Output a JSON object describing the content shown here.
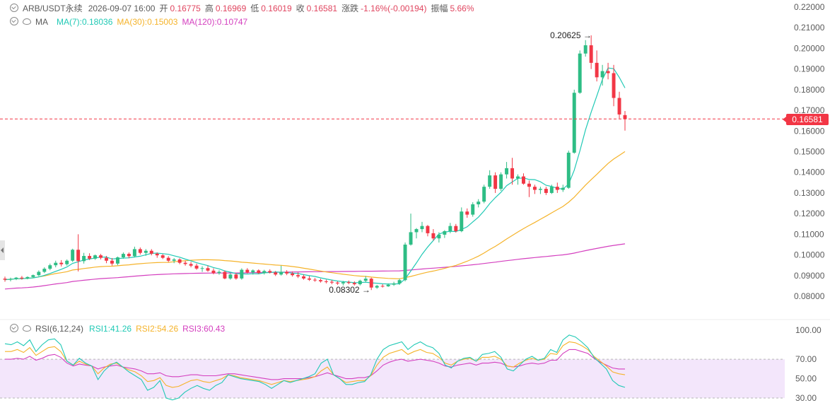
{
  "header": {
    "symbol": "ARB/USDT永续",
    "time": "2026-09-07 16:00",
    "open_label": "开",
    "open": "0.16775",
    "high_label": "高",
    "high": "0.16969",
    "low_label": "低",
    "low": "0.16019",
    "close_label": "收",
    "close": "0.16581",
    "change_label": "涨跌",
    "change": "-1.16%(-0.00194)",
    "amplitude_label": "振幅",
    "amplitude": "5.66%"
  },
  "ma_legend": {
    "label": "MA",
    "ma7": "MA(7):0.18036",
    "ma30": "MA(30):0.15003",
    "ma120": "MA(120):0.10747"
  },
  "rsi_legend": {
    "label": "RSI(6,12,24)",
    "rsi1": "RSI1:41.26",
    "rsi2": "RSI2:54.26",
    "rsi3": "RSI3:60.43"
  },
  "current_price": "0.16581",
  "annotations": {
    "high_marker": "0.20625",
    "low_marker": "0.08302"
  },
  "colors": {
    "up": "#2ebd85",
    "down": "#f23645",
    "ma7": "#20c9b5",
    "ma30": "#f5b32a",
    "ma120": "#d43fbf",
    "rsi1": "#20c9b5",
    "rsi2": "#f5b32a",
    "rsi3": "#d43fbf",
    "rsi_band": "#f3e6fb",
    "text": "#5a5a5a"
  },
  "chart_data": [
    {
      "type": "candlestick",
      "y_ticks": [
        "0.22000",
        "0.21000",
        "0.20000",
        "0.19000",
        "0.18000",
        "0.17000",
        "0.16000",
        "0.15000",
        "0.14000",
        "0.13000",
        "0.12000",
        "0.11000",
        "0.10000",
        "0.09000",
        "0.08000"
      ],
      "ylim": [
        0.075,
        0.222
      ],
      "candles": [
        [
          0.0885,
          0.0895,
          0.087,
          0.088
        ],
        [
          0.088,
          0.089,
          0.0872,
          0.0884
        ],
        [
          0.0884,
          0.0893,
          0.0878,
          0.089
        ],
        [
          0.089,
          0.0898,
          0.088,
          0.0886
        ],
        [
          0.0886,
          0.0896,
          0.0882,
          0.0893
        ],
        [
          0.0893,
          0.0905,
          0.0888,
          0.0902
        ],
        [
          0.0902,
          0.0925,
          0.0897,
          0.0918
        ],
        [
          0.0918,
          0.094,
          0.0912,
          0.0933
        ],
        [
          0.0933,
          0.0958,
          0.0926,
          0.095
        ],
        [
          0.095,
          0.0972,
          0.094,
          0.0962
        ],
        [
          0.0962,
          0.0975,
          0.0944,
          0.0955
        ],
        [
          0.0955,
          0.0978,
          0.0948,
          0.0972
        ],
        [
          0.0972,
          0.103,
          0.0966,
          0.1025
        ],
        [
          0.1025,
          0.11,
          0.092,
          0.097
        ],
        [
          0.097,
          0.101,
          0.0958,
          0.0995
        ],
        [
          0.0995,
          0.1008,
          0.0975,
          0.0982
        ],
        [
          0.0982,
          0.1002,
          0.0976,
          0.0998
        ],
        [
          0.0998,
          0.1005,
          0.0978,
          0.0986
        ],
        [
          0.0986,
          0.0995,
          0.096,
          0.0972
        ],
        [
          0.0972,
          0.0985,
          0.0948,
          0.0958
        ],
        [
          0.0958,
          0.0992,
          0.095,
          0.0988
        ],
        [
          0.0988,
          0.1012,
          0.0982,
          0.1005
        ],
        [
          0.1005,
          0.1012,
          0.0984,
          0.0994
        ],
        [
          0.0994,
          0.104,
          0.0988,
          0.1028
        ],
        [
          0.1028,
          0.1036,
          0.1002,
          0.101
        ],
        [
          0.101,
          0.1028,
          0.0996,
          0.102
        ],
        [
          0.102,
          0.1028,
          0.0998,
          0.1006
        ],
        [
          0.1006,
          0.1012,
          0.0986,
          0.0998
        ],
        [
          0.0998,
          0.1004,
          0.098,
          0.0986
        ],
        [
          0.0986,
          0.0994,
          0.0966,
          0.0972
        ],
        [
          0.0972,
          0.0985,
          0.096,
          0.0978
        ],
        [
          0.0978,
          0.0984,
          0.0955,
          0.0962
        ],
        [
          0.0962,
          0.0972,
          0.0948,
          0.0956
        ],
        [
          0.0956,
          0.0966,
          0.094,
          0.0948
        ],
        [
          0.0948,
          0.0958,
          0.0928,
          0.0934
        ],
        [
          0.0934,
          0.0945,
          0.0918,
          0.0936
        ],
        [
          0.0936,
          0.0948,
          0.0918,
          0.0924
        ],
        [
          0.0924,
          0.0935,
          0.0906,
          0.0912
        ],
        [
          0.0912,
          0.0926,
          0.0904,
          0.0918
        ],
        [
          0.0918,
          0.0925,
          0.0882,
          0.0886
        ],
        [
          0.0886,
          0.0912,
          0.088,
          0.0905
        ],
        [
          0.0905,
          0.0912,
          0.088,
          0.0886
        ],
        [
          0.0886,
          0.0935,
          0.088,
          0.0928
        ],
        [
          0.0928,
          0.0936,
          0.091,
          0.0915
        ],
        [
          0.0915,
          0.093,
          0.0905,
          0.0925
        ],
        [
          0.0925,
          0.093,
          0.0908,
          0.0912
        ],
        [
          0.0912,
          0.0928,
          0.0905,
          0.0922
        ],
        [
          0.0922,
          0.093,
          0.091,
          0.0915
        ],
        [
          0.0915,
          0.0922,
          0.0898,
          0.0905
        ],
        [
          0.0905,
          0.0948,
          0.09,
          0.0918
        ],
        [
          0.0918,
          0.0926,
          0.0902,
          0.091
        ],
        [
          0.091,
          0.092,
          0.0895,
          0.0902
        ],
        [
          0.0902,
          0.0915,
          0.0888,
          0.0896
        ],
        [
          0.0896,
          0.0905,
          0.088,
          0.0886
        ],
        [
          0.0886,
          0.0898,
          0.0874,
          0.088
        ],
        [
          0.088,
          0.0888,
          0.087,
          0.0878
        ],
        [
          0.0878,
          0.0885,
          0.0866,
          0.0872
        ],
        [
          0.0872,
          0.088,
          0.0862,
          0.087
        ],
        [
          0.087,
          0.0878,
          0.0858,
          0.0866
        ],
        [
          0.0866,
          0.0872,
          0.0855,
          0.0862
        ],
        [
          0.0862,
          0.0874,
          0.0852,
          0.0868
        ],
        [
          0.0868,
          0.0876,
          0.0858,
          0.0864
        ],
        [
          0.0864,
          0.0872,
          0.0852,
          0.0858
        ],
        [
          0.0858,
          0.088,
          0.0852,
          0.0875
        ],
        [
          0.0875,
          0.0898,
          0.0868,
          0.0885
        ],
        [
          0.0885,
          0.089,
          0.083,
          0.0842
        ],
        [
          0.0842,
          0.0855,
          0.0836,
          0.085
        ],
        [
          0.085,
          0.0858,
          0.0842,
          0.0848
        ],
        [
          0.0848,
          0.0862,
          0.0845,
          0.0856
        ],
        [
          0.0856,
          0.087,
          0.085,
          0.0862
        ],
        [
          0.0862,
          0.0885,
          0.0855,
          0.0878
        ],
        [
          0.0878,
          0.106,
          0.0872,
          0.105
        ],
        [
          0.105,
          0.12,
          0.1045,
          0.111
        ],
        [
          0.111,
          0.113,
          0.108,
          0.1125
        ],
        [
          0.1125,
          0.116,
          0.111,
          0.114
        ],
        [
          0.114,
          0.1145,
          0.109,
          0.1105
        ],
        [
          0.1105,
          0.1125,
          0.107,
          0.108
        ],
        [
          0.108,
          0.111,
          0.106,
          0.1098
        ],
        [
          0.1098,
          0.112,
          0.1082,
          0.1115
        ],
        [
          0.1115,
          0.1155,
          0.1105,
          0.114
        ],
        [
          0.114,
          0.115,
          0.1108,
          0.1115
        ],
        [
          0.1115,
          0.123,
          0.111,
          0.121
        ],
        [
          0.121,
          0.1225,
          0.118,
          0.1195
        ],
        [
          0.1195,
          0.1255,
          0.1185,
          0.1245
        ],
        [
          0.1245,
          0.127,
          0.123,
          0.1258
        ],
        [
          0.1258,
          0.134,
          0.125,
          0.133
        ],
        [
          0.133,
          0.141,
          0.132,
          0.1385
        ],
        [
          0.1385,
          0.14,
          0.13,
          0.132
        ],
        [
          0.132,
          0.14,
          0.131,
          0.139
        ],
        [
          0.139,
          0.145,
          0.137,
          0.142
        ],
        [
          0.142,
          0.147,
          0.134,
          0.137
        ],
        [
          0.137,
          0.139,
          0.134,
          0.138
        ],
        [
          0.138,
          0.1395,
          0.134,
          0.1345
        ],
        [
          0.1345,
          0.136,
          0.128,
          0.133
        ],
        [
          0.133,
          0.134,
          0.1295,
          0.1315
        ],
        [
          0.1315,
          0.133,
          0.1295,
          0.132
        ],
        [
          0.132,
          0.133,
          0.129,
          0.13
        ],
        [
          0.13,
          0.134,
          0.1295,
          0.133
        ],
        [
          0.133,
          0.135,
          0.13,
          0.1315
        ],
        [
          0.1315,
          0.134,
          0.1305,
          0.1325
        ],
        [
          0.1325,
          0.1505,
          0.132,
          0.1495
        ],
        [
          0.1495,
          0.18,
          0.149,
          0.1785
        ],
        [
          0.1785,
          0.199,
          0.178,
          0.1975
        ],
        [
          0.1975,
          0.204,
          0.196,
          0.2015
        ],
        [
          0.2015,
          0.2063,
          0.19,
          0.193
        ],
        [
          0.193,
          0.199,
          0.184,
          0.186
        ],
        [
          0.186,
          0.192,
          0.182,
          0.189
        ],
        [
          0.189,
          0.193,
          0.185,
          0.188
        ],
        [
          0.188,
          0.192,
          0.172,
          0.176
        ],
        [
          0.176,
          0.179,
          0.166,
          0.168
        ],
        [
          0.1677,
          0.1697,
          0.1602,
          0.1658
        ]
      ]
    },
    {
      "type": "line",
      "name": "RSI",
      "y_ticks": [
        "100.00",
        "70.00",
        "50.00",
        "30.00"
      ],
      "band": [
        30,
        70
      ],
      "series": [
        {
          "name": "RSI1",
          "values": [
            86,
            85,
            88,
            84,
            90,
            78,
            85,
            90,
            91,
            85,
            68,
            64,
            71,
            66,
            63,
            49,
            58,
            64,
            67,
            62,
            57,
            53,
            49,
            38,
            41,
            48,
            30,
            28,
            30,
            36,
            40,
            43,
            40,
            38,
            43,
            46,
            54,
            52,
            50,
            49,
            48,
            47,
            44,
            40,
            44,
            48,
            46,
            48,
            50,
            52,
            55,
            66,
            70,
            54,
            50,
            44,
            44,
            46,
            47,
            54,
            70,
            80,
            84,
            86,
            88,
            80,
            85,
            88,
            84,
            82,
            76,
            64,
            61,
            68,
            71,
            72,
            68,
            75,
            76,
            78,
            72,
            60,
            58,
            64,
            70,
            73,
            69,
            71,
            80,
            77,
            90,
            95,
            93,
            88,
            82,
            72,
            66,
            60,
            48,
            43,
            41
          ]
        },
        {
          "name": "RSI2",
          "values": [
            78,
            78,
            80,
            77,
            82,
            74,
            78,
            82,
            83,
            78,
            68,
            64,
            68,
            65,
            63,
            55,
            61,
            65,
            66,
            62,
            59,
            57,
            53,
            47,
            48,
            51,
            43,
            41,
            42,
            45,
            48,
            49,
            47,
            46,
            48,
            50,
            54,
            53,
            51,
            50,
            49,
            48,
            46,
            44,
            46,
            48,
            47,
            48,
            49,
            50,
            52,
            58,
            62,
            54,
            50,
            46,
            47,
            48,
            48,
            53,
            64,
            72,
            76,
            78,
            80,
            75,
            78,
            80,
            77,
            76,
            72,
            66,
            64,
            68,
            70,
            71,
            68,
            72,
            72,
            73,
            70,
            63,
            62,
            66,
            69,
            71,
            69,
            70,
            76,
            75,
            84,
            88,
            87,
            84,
            80,
            73,
            68,
            63,
            57,
            55,
            54
          ]
        },
        {
          "name": "RSI3",
          "values": [
            70,
            70,
            71,
            70,
            73,
            69,
            71,
            74,
            75,
            72,
            66,
            63,
            65,
            64,
            63,
            60,
            62,
            63,
            64,
            62,
            61,
            60,
            58,
            55,
            55,
            56,
            53,
            52,
            52,
            53,
            54,
            54,
            53,
            53,
            53,
            54,
            55,
            55,
            54,
            53,
            52,
            51,
            50,
            49,
            49,
            50,
            50,
            50,
            50,
            51,
            52,
            54,
            56,
            54,
            52,
            50,
            50,
            51,
            51,
            53,
            58,
            64,
            67,
            69,
            70,
            68,
            69,
            70,
            69,
            68,
            66,
            63,
            62,
            64,
            65,
            66,
            64,
            66,
            66,
            67,
            66,
            63,
            62,
            63,
            65,
            66,
            65,
            66,
            69,
            69,
            76,
            80,
            80,
            78,
            76,
            71,
            67,
            64,
            61,
            60,
            60
          ]
        }
      ]
    }
  ]
}
